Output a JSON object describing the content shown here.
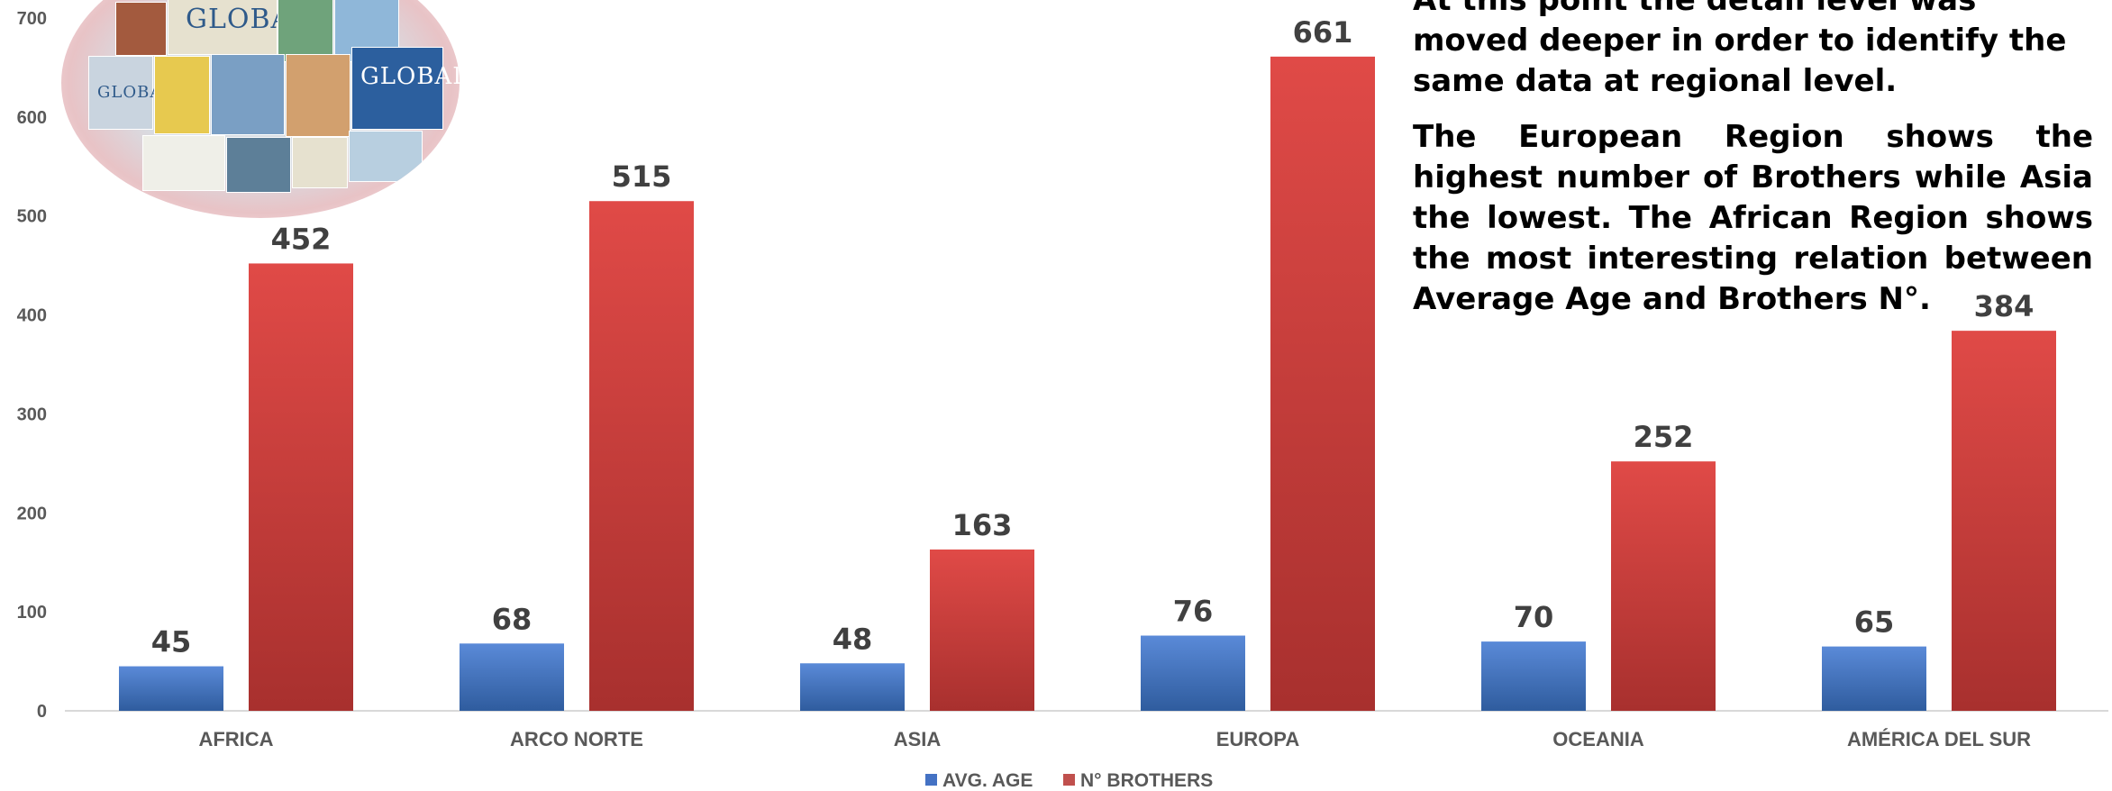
{
  "chart_data": {
    "type": "bar",
    "categories": [
      "AFRICA",
      "ARCO NORTE",
      "ASIA",
      "EUROPA",
      "OCEANIA",
      "AMÉRICA DEL SUR"
    ],
    "series": [
      {
        "name": "AVG. AGE",
        "values": [
          45,
          68,
          48,
          76,
          70,
          65
        ],
        "color": "#4472c4"
      },
      {
        "name": "N° BROTHERS",
        "values": [
          452,
          515,
          163,
          661,
          252,
          384
        ],
        "color": "#c0504d"
      }
    ],
    "ylim": [
      0,
      700
    ],
    "yticks": [
      "0",
      "100",
      "200",
      "300",
      "400",
      "500",
      "600",
      "700"
    ],
    "grid": false,
    "legend_position": "bottom",
    "data_labels": true
  },
  "note": {
    "paragraph_1": "At this point the detail level was moved deeper in order to identify the same data at regional level.",
    "paragraph_2": "The European Region shows the highest number of Brothers while Asia the lowest. The African Region shows the most interesting relation between Average Age and Brothers N°."
  },
  "image": {
    "title_text": "GLOBAL",
    "title_text_2": "GLOBAL",
    "title_text_3": "GLOBAL",
    "thumbnail_colors": [
      "#8fb7d9",
      "#e6e1cf",
      "#6fa37b",
      "#2c5f9e",
      "#c9d4df",
      "#e7c94f",
      "#a35a3e",
      "#7a9fc4",
      "#d2a06e",
      "#5d7f98",
      "#efefe8",
      "#b8cfe0"
    ]
  }
}
